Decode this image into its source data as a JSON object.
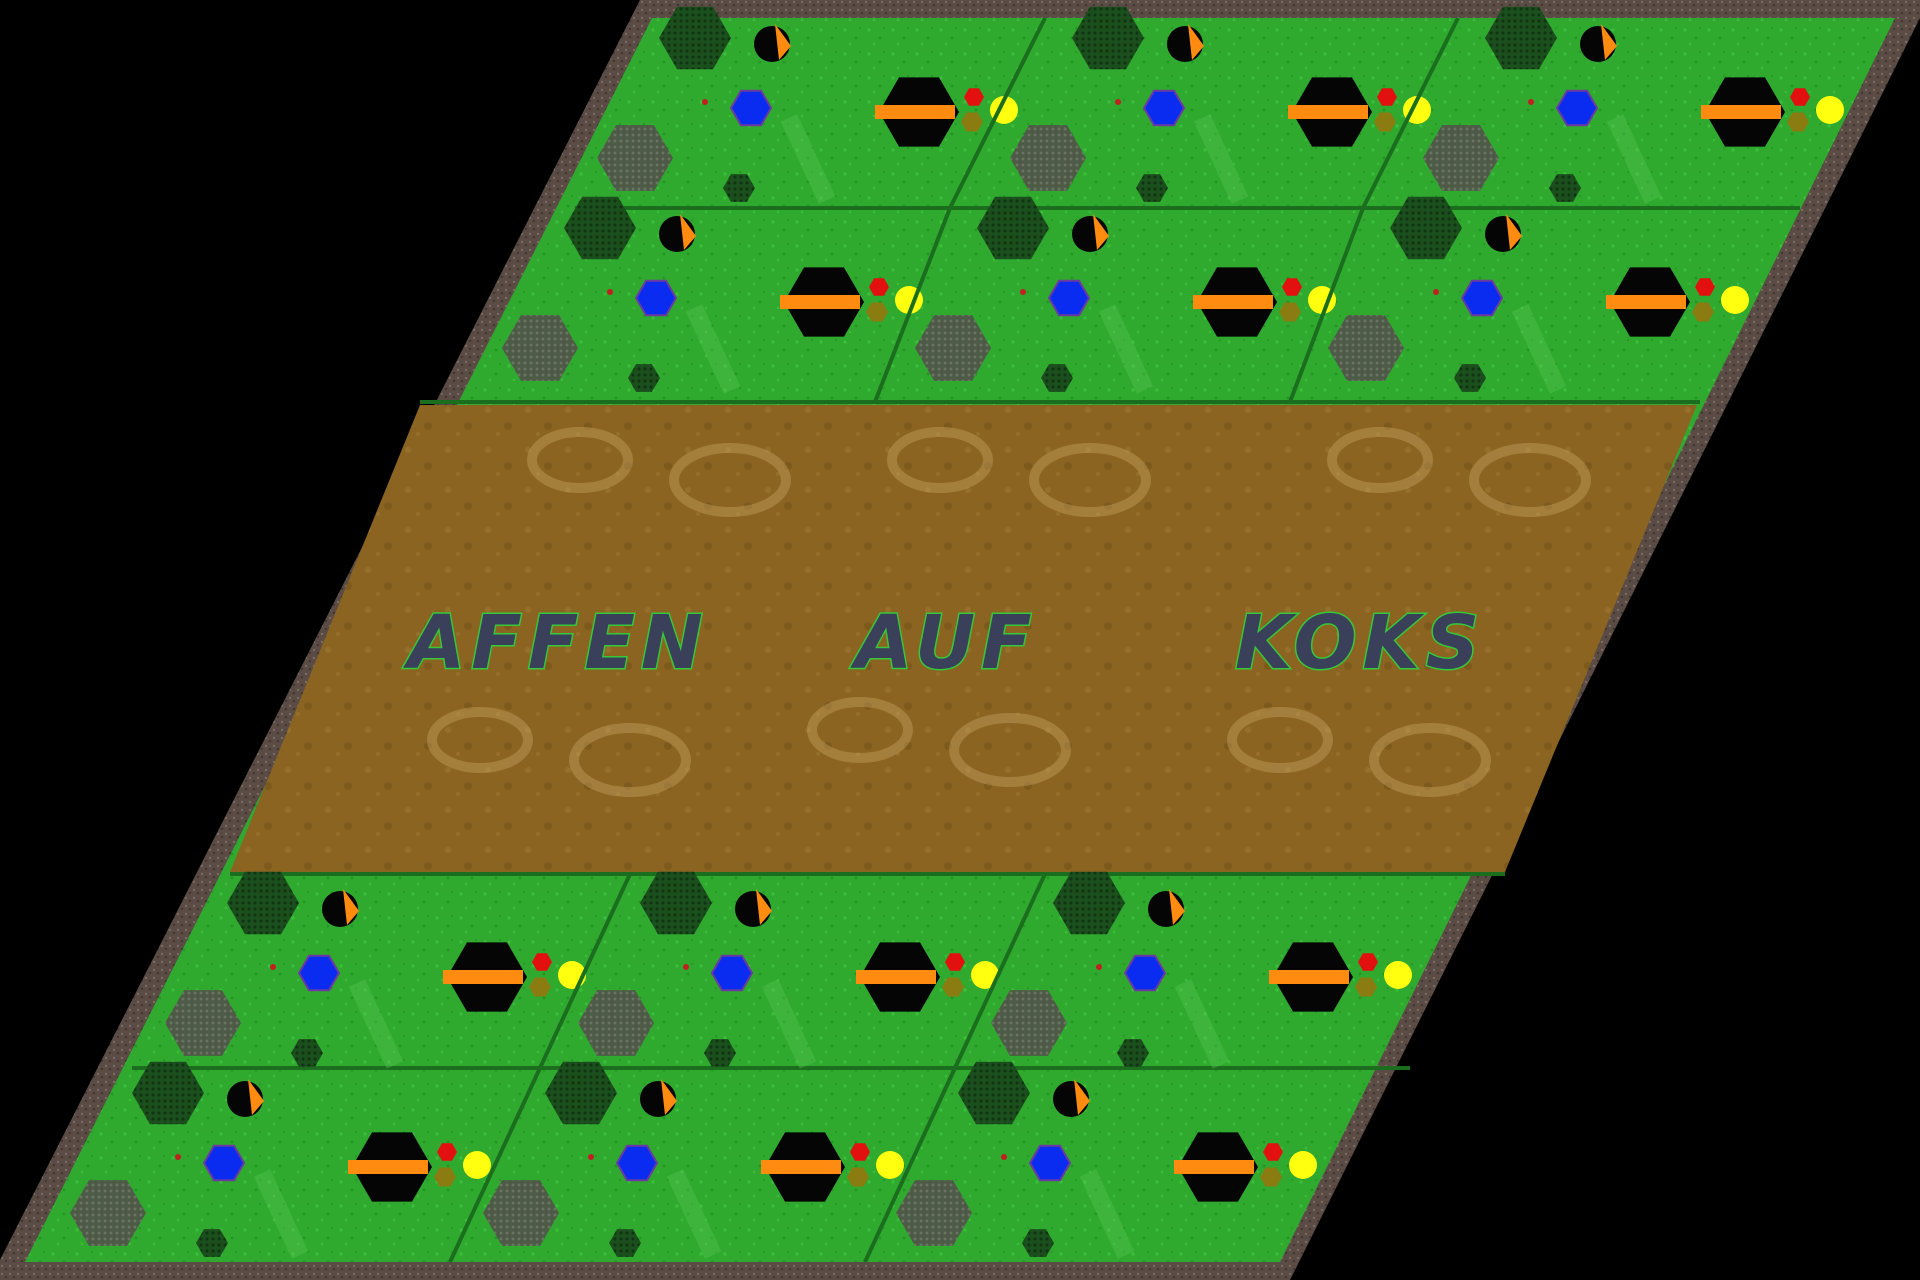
{
  "map": {
    "title_words": [
      "AFFEN",
      "AUF",
      "KOKS"
    ],
    "colors": {
      "background": "#000000",
      "border_rock": "#5a4c44",
      "grass": "#2faa2f",
      "grass_dark": "#1f7a22",
      "dirt_center": "#8a6420",
      "forest": "#1c4f1e",
      "rock_field": "#4c5a46",
      "player_blue": "#0a2cf0",
      "player_orange": "#ff8c10",
      "player_red": "#e31010",
      "player_yellow": "#ffff10",
      "gold_hex": "#8a7c10",
      "black_hex": "#050505",
      "title_fill": "#3a3f5a",
      "title_outline": "#36c83a"
    },
    "sections": [
      {
        "name": "top-green-band",
        "rows": 2,
        "columns": 3
      },
      {
        "name": "center-dirt-arena",
        "rows": 1,
        "columns": 1
      },
      {
        "name": "bottom-green-band",
        "rows": 2,
        "columns": 3
      }
    ],
    "base_template": {
      "items": [
        "forest-hex",
        "rock-hex",
        "small-forest-hex",
        "orange-black-marker",
        "blue-blob",
        "black-orange-hex",
        "red-hex",
        "gold-hex",
        "yellow-blob"
      ]
    }
  }
}
